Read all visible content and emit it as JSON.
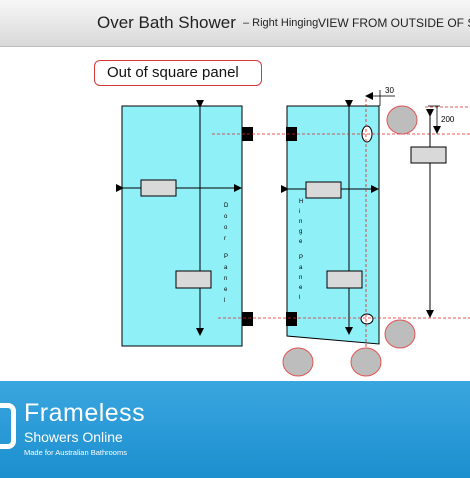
{
  "header": {
    "title": "Over Bath Shower",
    "subtitle": "– Right Hinging",
    "view_label": "VIEW FROM OUTSIDE OF SH"
  },
  "callout": {
    "label": "Out of square panel"
  },
  "door_panel": {
    "label_letters": [
      "D",
      "o",
      "o",
      "r",
      "",
      "P",
      "a",
      "n",
      "e",
      "l"
    ]
  },
  "hinge_panel": {
    "label_letters": [
      "H",
      "i",
      "n",
      "g",
      "e",
      "",
      "P",
      "a",
      "n",
      "e",
      "l"
    ]
  },
  "dimensions": {
    "offset": "30",
    "height": "200"
  },
  "footer": {
    "brand": "Frameless",
    "brand_sub": "Showers Online",
    "tagline": "Made for Australian Bathrooms"
  },
  "colors": {
    "glass": "#8ff0f8",
    "outline": "#000000",
    "bracket": "#000000",
    "hole": "#bdbdbd",
    "hole_border": "#e05555",
    "guide_line": "#e02020",
    "footer_bg": "#1c8fcf"
  }
}
